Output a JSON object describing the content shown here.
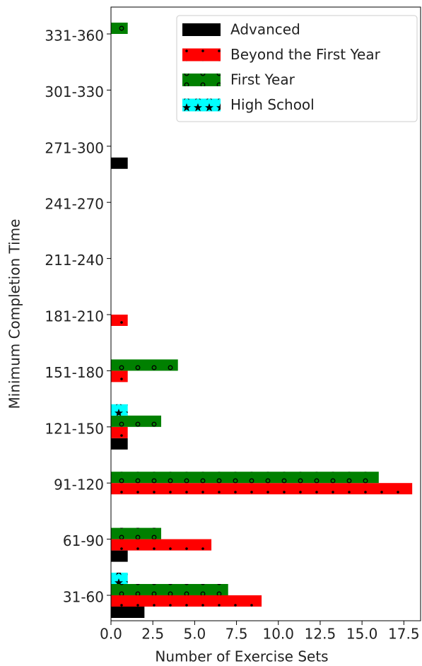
{
  "chart_data": {
    "type": "barh",
    "xlabel": "Number of Exercise Sets",
    "ylabel": "Minimum Completion Time",
    "categories": [
      "31-60",
      "61-90",
      "91-120",
      "121-150",
      "151-180",
      "181-210",
      "211-240",
      "241-270",
      "271-300",
      "301-330",
      "331-360"
    ],
    "series": [
      {
        "name": "Advanced",
        "color": "#000000",
        "hatch": "",
        "values": [
          2,
          1,
          0,
          1,
          0,
          0,
          0,
          0,
          1,
          0,
          0
        ]
      },
      {
        "name": "Beyond the First Year",
        "color": "#ff0000",
        "hatch": ".",
        "values": [
          9,
          6,
          18,
          1,
          1,
          1,
          0,
          0,
          0,
          0,
          0
        ]
      },
      {
        "name": "First Year",
        "color": "#008000",
        "hatch": "o",
        "values": [
          7,
          3,
          16,
          3,
          4,
          0,
          0,
          0,
          0,
          0,
          1
        ]
      },
      {
        "name": "High School",
        "color": "#00ffff",
        "hatch": "*",
        "values": [
          1,
          0,
          0,
          1,
          0,
          0,
          0,
          0,
          0,
          0,
          0
        ]
      }
    ],
    "xlim": [
      0,
      18.5
    ],
    "xticks": [
      {
        "value": 0,
        "label": "0.0"
      },
      2.5,
      {
        "value": 5,
        "label": "5.0"
      },
      7.5,
      {
        "value": 10,
        "label": "10.0"
      },
      12.5,
      {
        "value": 15,
        "label": "15.0"
      },
      17.5
    ],
    "legend": "upper right"
  }
}
